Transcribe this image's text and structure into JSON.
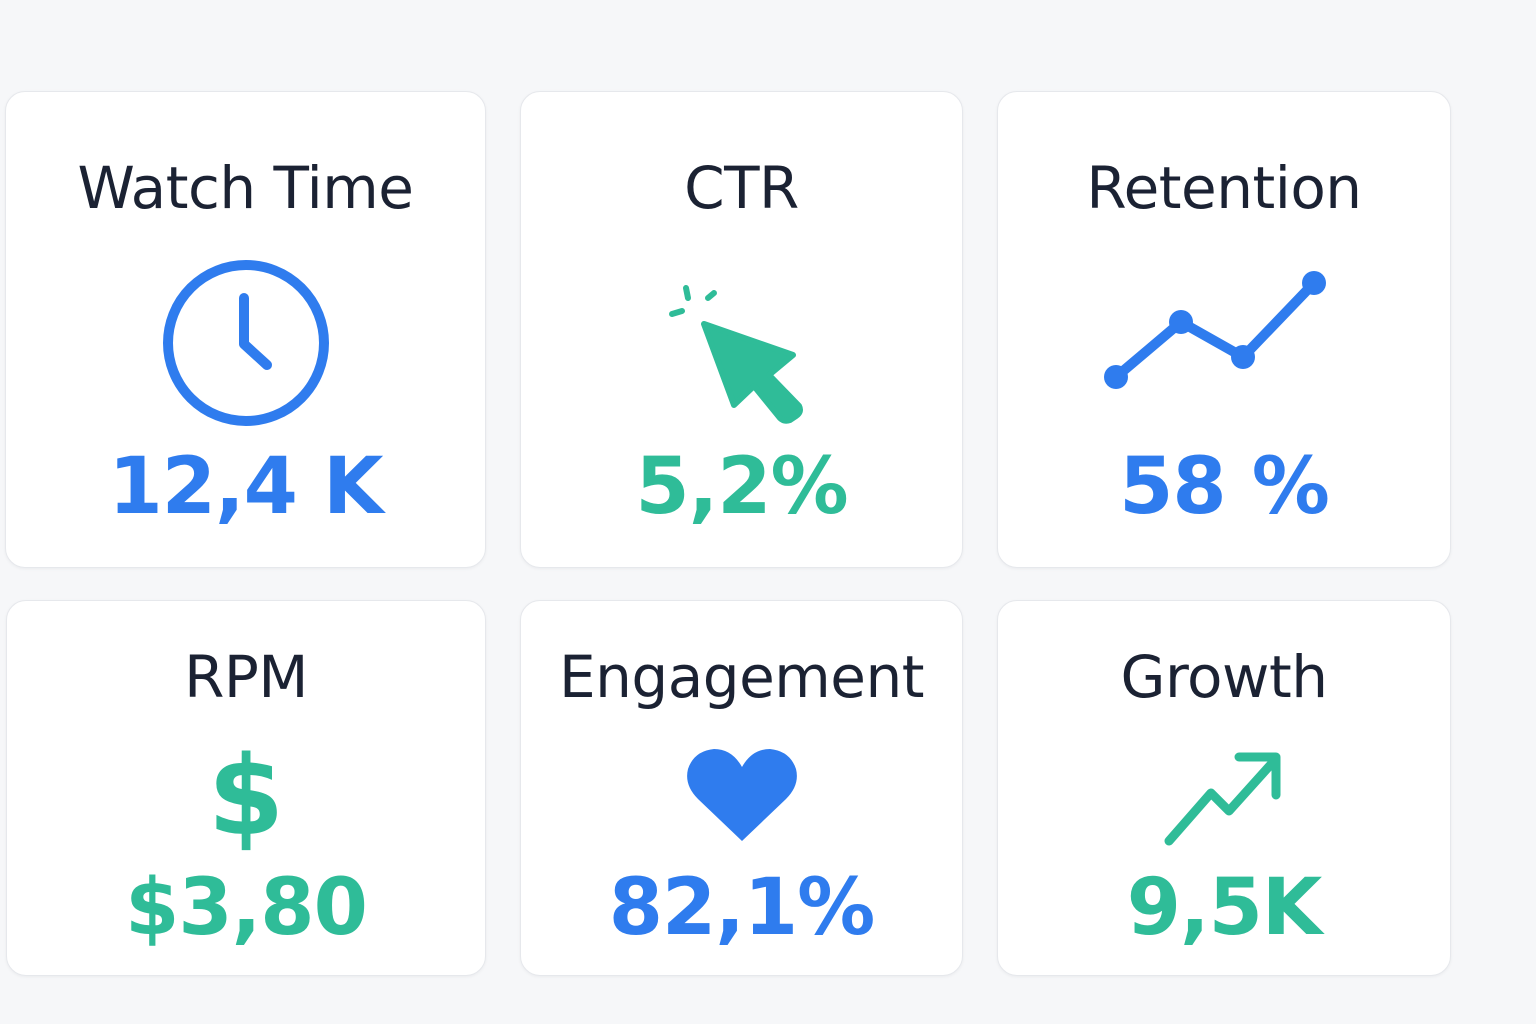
{
  "colors": {
    "blue": "#2f7cee",
    "green": "#2fbc98",
    "title": "#1b2233",
    "background": "#f6f7f9",
    "card": "#ffffff"
  },
  "cards": [
    {
      "title": "Watch Time",
      "icon": "clock-icon",
      "value": "12,4 K",
      "color": "blue"
    },
    {
      "title": "CTR",
      "icon": "cursor-click-icon",
      "value": "5,2%",
      "color": "green"
    },
    {
      "title": "Retention",
      "icon": "line-chart-icon",
      "value": "58 %",
      "color": "blue"
    },
    {
      "title": "RPM",
      "icon": "dollar-icon",
      "icon_glyph": "$",
      "value": "$3,80",
      "color": "green"
    },
    {
      "title": "Engagement",
      "icon": "heart-icon",
      "value": "82,1%",
      "color": "blue"
    },
    {
      "title": "Growth",
      "icon": "trending-up-icon",
      "value": "9,5K",
      "color": "green"
    }
  ]
}
